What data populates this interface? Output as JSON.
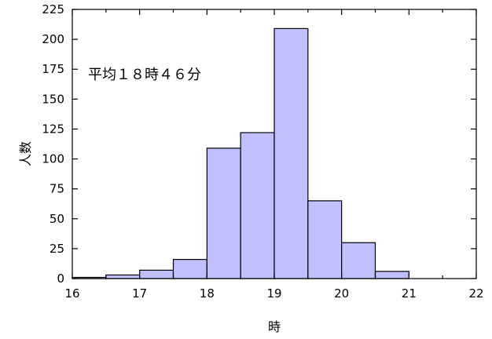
{
  "chart_data": {
    "type": "bar",
    "bin_edges": [
      16,
      16.5,
      17,
      17.5,
      18,
      18.5,
      19,
      19.5,
      20,
      20.5,
      21,
      21.5,
      22
    ],
    "values": [
      1,
      3,
      7,
      16,
      109,
      122,
      209,
      65,
      30,
      6,
      0,
      0
    ],
    "xlabel": "時",
    "ylabel": "人数",
    "xlim": [
      16,
      22
    ],
    "ylim": [
      0,
      225
    ],
    "x_ticks": [
      16,
      17,
      18,
      19,
      20,
      21,
      22
    ],
    "y_ticks": [
      0,
      25,
      50,
      75,
      100,
      125,
      150,
      175,
      200,
      225
    ],
    "annotation": "平均１８時４６分",
    "bar_color": "#c0c0ff",
    "grid": false
  }
}
